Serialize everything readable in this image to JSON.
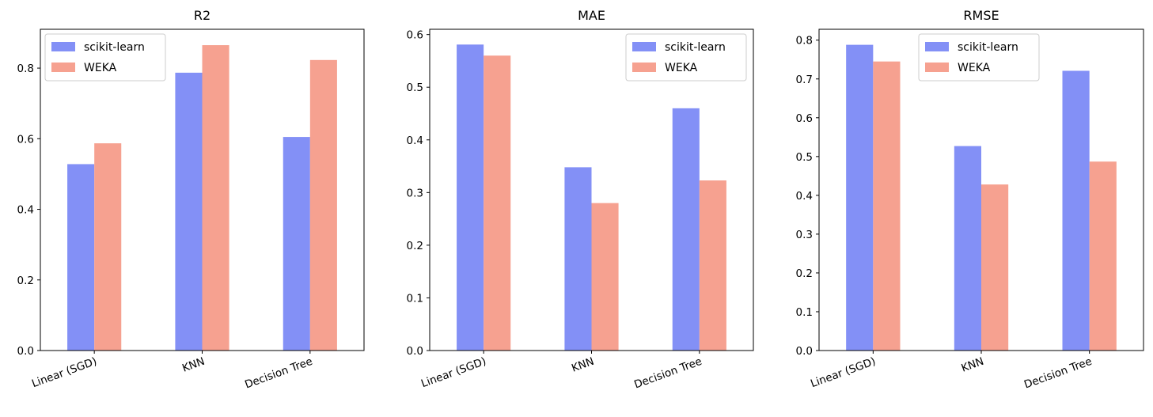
{
  "colors": {
    "scikit-learn": "#8390F6",
    "WEKA": "#F6A190"
  },
  "chart_data": [
    {
      "type": "bar",
      "title": "R2",
      "categories": [
        "Linear (SGD)",
        "KNN",
        "Decision Tree"
      ],
      "series": [
        {
          "name": "scikit-learn",
          "values": [
            0.528,
            0.787,
            0.605
          ]
        },
        {
          "name": "WEKA",
          "values": [
            0.587,
            0.865,
            0.823
          ]
        }
      ],
      "ylim": [
        0,
        0.91
      ],
      "yticks": [
        0.0,
        0.2,
        0.4,
        0.6,
        0.8
      ],
      "ytick_labels": [
        "0.0",
        "0.2",
        "0.4",
        "0.6",
        "0.8"
      ],
      "legend": "top-left",
      "grid": false
    },
    {
      "type": "bar",
      "title": "MAE",
      "categories": [
        "Linear (SGD)",
        "KNN",
        "Decision Tree"
      ],
      "series": [
        {
          "name": "scikit-learn",
          "values": [
            0.581,
            0.348,
            0.46
          ]
        },
        {
          "name": "WEKA",
          "values": [
            0.56,
            0.28,
            0.323
          ]
        }
      ],
      "ylim": [
        0,
        0.61
      ],
      "yticks": [
        0.0,
        0.1,
        0.2,
        0.3,
        0.4,
        0.5,
        0.6
      ],
      "ytick_labels": [
        "0.0",
        "0.1",
        "0.2",
        "0.3",
        "0.4",
        "0.5",
        "0.6"
      ],
      "legend": "top-right",
      "grid": false
    },
    {
      "type": "bar",
      "title": "RMSE",
      "categories": [
        "Linear (SGD)",
        "KNN",
        "Decision Tree"
      ],
      "series": [
        {
          "name": "scikit-learn",
          "values": [
            0.788,
            0.527,
            0.721
          ]
        },
        {
          "name": "WEKA",
          "values": [
            0.745,
            0.428,
            0.487
          ]
        }
      ],
      "ylim": [
        0,
        0.828
      ],
      "yticks": [
        0.0,
        0.1,
        0.2,
        0.3,
        0.4,
        0.5,
        0.6,
        0.7,
        0.8
      ],
      "ytick_labels": [
        "0.0",
        "0.1",
        "0.2",
        "0.3",
        "0.4",
        "0.5",
        "0.6",
        "0.7",
        "0.8"
      ],
      "legend": "top-center",
      "grid": false
    }
  ]
}
